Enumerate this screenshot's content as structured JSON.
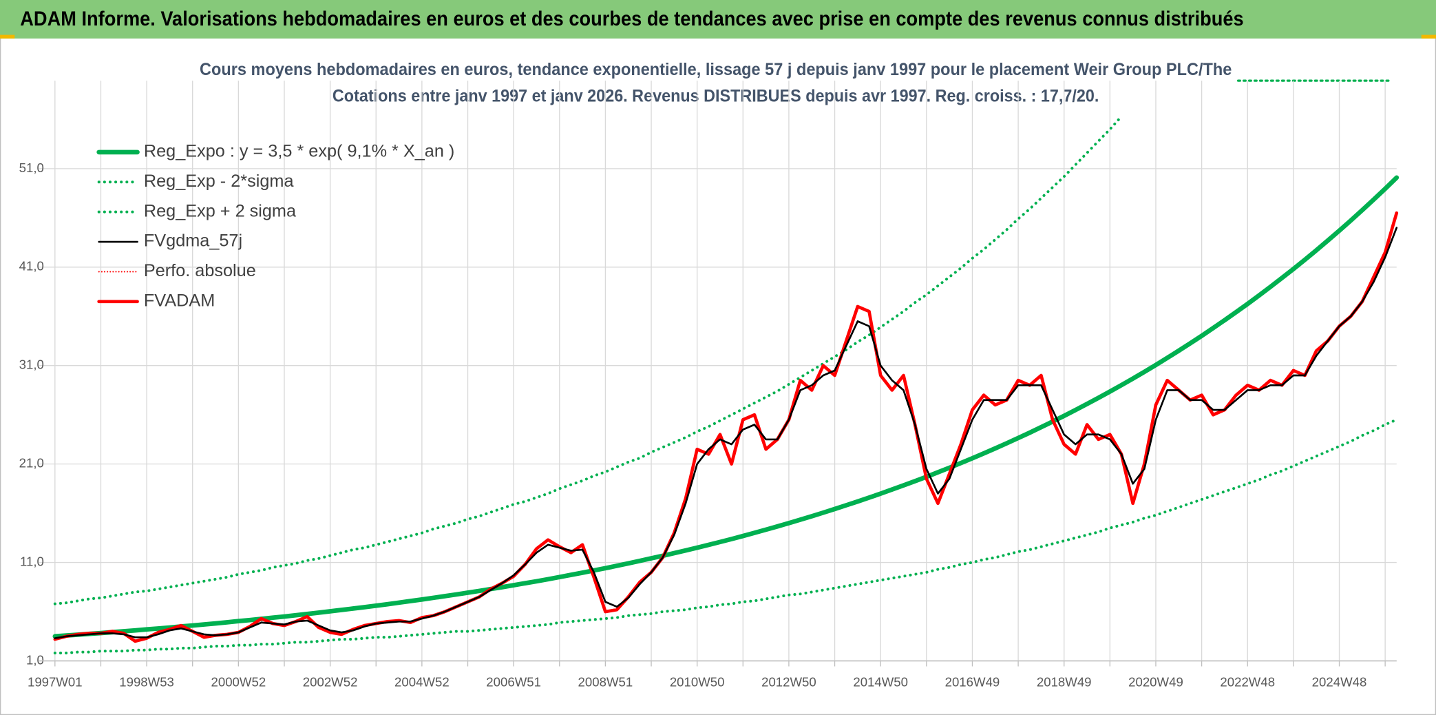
{
  "chart_data": {
    "type": "line",
    "page_title": "ADAM Informe. Valorisations hebdomadaires en euros et des courbes de tendances avec prise en compte des revenus connus distribués",
    "title": [
      "Cours moyens hebdomadaires en euros, tendance exponentielle, lissage 57 j depuis janv 1997 pour le placement Weir Group PLC/The",
      "Cotations entre janv 1997 et janv 2026. Revenus DISTRIBUES depuis avr 1997. Reg. croiss. : 17,7/20."
    ],
    "legend": "upper left",
    "grid": true,
    "ylim": [
      1,
      61
    ],
    "yticks": [
      {
        "value": 1,
        "label": "1,0"
      },
      {
        "value": 11,
        "label": "11,0"
      },
      {
        "value": 21,
        "label": "21,0"
      },
      {
        "value": 31,
        "label": "31,0"
      },
      {
        "value": 41,
        "label": "41,0"
      },
      {
        "value": 51,
        "label": "51,0"
      }
    ],
    "categories": [
      "1997W01",
      null,
      null,
      null,
      null,
      null,
      null,
      null,
      "1998W53",
      null,
      null,
      null,
      null,
      null,
      null,
      null,
      "2000W52",
      null,
      null,
      null,
      null,
      null,
      null,
      null,
      "2002W52",
      null,
      null,
      null,
      null,
      null,
      null,
      null,
      "2004W52",
      null,
      null,
      null,
      null,
      null,
      null,
      null,
      "2006W51",
      null,
      null,
      null,
      null,
      null,
      null,
      null,
      "2008W51",
      null,
      null,
      null,
      null,
      null,
      null,
      null,
      "2010W50",
      null,
      null,
      null,
      null,
      null,
      null,
      null,
      "2012W50",
      null,
      null,
      null,
      null,
      null,
      null,
      null,
      "2014W50",
      null,
      null,
      null,
      null,
      null,
      null,
      null,
      "2016W49",
      null,
      null,
      null,
      null,
      null,
      null,
      null,
      "2018W49",
      null,
      null,
      null,
      null,
      null,
      null,
      null,
      "2020W49",
      null,
      null,
      null,
      null,
      null,
      null,
      null,
      "2022W48",
      null,
      null,
      null,
      null,
      null,
      null,
      null,
      "2024W48",
      null,
      null,
      null,
      null,
      null
    ],
    "series": [
      {
        "name": "Reg_Expo : y = 3,5 * exp( 9,1% *  X_an )",
        "color": "#00b050",
        "style": "solid",
        "width": 5,
        "values": [
          3.5,
          3.58,
          3.66,
          3.75,
          3.83,
          3.92,
          4.01,
          4.1,
          4.2,
          4.29,
          4.39,
          4.5,
          4.6,
          4.7,
          4.81,
          4.92,
          5.04,
          5.15,
          5.27,
          5.39,
          5.51,
          5.64,
          5.77,
          5.9,
          6.04,
          6.18,
          6.32,
          6.46,
          6.61,
          6.76,
          6.92,
          7.08,
          7.24,
          7.41,
          7.58,
          7.75,
          7.93,
          8.11,
          8.3,
          8.49,
          8.69,
          8.89,
          9.09,
          9.3,
          9.52,
          9.74,
          9.96,
          10.19,
          10.42,
          10.66,
          10.91,
          11.16,
          11.42,
          11.68,
          11.95,
          12.22,
          12.5,
          12.79,
          13.08,
          13.38,
          13.69,
          14.01,
          14.33,
          14.66,
          15.0,
          15.35,
          15.7,
          16.06,
          16.43,
          16.81,
          17.19,
          17.59,
          17.99,
          18.41,
          18.83,
          19.26,
          19.7,
          20.16,
          20.62,
          21.1,
          21.58,
          22.08,
          22.59,
          23.11,
          23.64,
          24.18,
          24.74,
          25.31,
          25.89,
          26.49,
          27.1,
          27.72,
          28.36,
          29.01,
          29.68,
          30.36,
          31.06,
          31.78,
          32.51,
          33.26,
          34.02,
          34.81,
          35.61,
          36.43,
          37.26,
          38.12,
          39.0,
          39.9,
          40.81,
          41.75,
          42.71,
          43.7,
          44.7,
          45.73,
          46.79,
          47.86,
          48.96,
          50.09
        ]
      },
      {
        "name": "Reg_Exp - 2*sigma",
        "color": "#00b050",
        "style": "dotted",
        "width": 3,
        "values": [
          1.8,
          1.8,
          1.9,
          1.9,
          2.0,
          2.0,
          2.0,
          2.1,
          2.1,
          2.2,
          2.2,
          2.3,
          2.3,
          2.4,
          2.5,
          2.5,
          2.6,
          2.6,
          2.7,
          2.7,
          2.8,
          2.9,
          2.9,
          3.0,
          3.1,
          3.2,
          3.2,
          3.3,
          3.4,
          3.4,
          3.5,
          3.6,
          3.7,
          3.8,
          3.9,
          4.0,
          4.0,
          4.1,
          4.2,
          4.3,
          4.4,
          4.5,
          4.6,
          4.7,
          4.9,
          5.0,
          5.1,
          5.2,
          5.3,
          5.4,
          5.6,
          5.7,
          5.8,
          6.0,
          6.1,
          6.2,
          6.4,
          6.5,
          6.7,
          6.8,
          7.0,
          7.1,
          7.3,
          7.5,
          7.7,
          7.8,
          8.0,
          8.2,
          8.4,
          8.6,
          8.8,
          9.0,
          9.2,
          9.4,
          9.6,
          9.8,
          10.0,
          10.3,
          10.5,
          10.8,
          11.0,
          11.3,
          11.5,
          11.8,
          12.1,
          12.3,
          12.6,
          12.9,
          13.2,
          13.5,
          13.8,
          14.1,
          14.5,
          14.8,
          15.1,
          15.5,
          15.8,
          16.2,
          16.6,
          17.0,
          17.4,
          17.8,
          18.2,
          18.6,
          19.0,
          19.4,
          19.9,
          20.3,
          20.8,
          21.3,
          21.8,
          22.3,
          22.8,
          23.3,
          23.9,
          24.4,
          25.0,
          25.5
        ]
      },
      {
        "name": "Reg_Exp + 2 sigma",
        "color": "#00b050",
        "style": "dotted",
        "width": 3,
        "values": [
          6.8,
          6.9,
          7.1,
          7.3,
          7.4,
          7.6,
          7.8,
          8.0,
          8.1,
          8.3,
          8.5,
          8.7,
          8.9,
          9.1,
          9.3,
          9.5,
          9.8,
          10.0,
          10.2,
          10.5,
          10.7,
          10.9,
          11.2,
          11.4,
          11.7,
          12.0,
          12.3,
          12.5,
          12.8,
          13.1,
          13.4,
          13.7,
          14.0,
          14.4,
          14.7,
          15.0,
          15.4,
          15.7,
          16.1,
          16.5,
          16.9,
          17.2,
          17.6,
          18.0,
          18.5,
          18.9,
          19.3,
          19.8,
          20.2,
          20.7,
          21.2,
          21.6,
          22.2,
          22.7,
          23.2,
          23.7,
          24.3,
          24.8,
          25.4,
          26.0,
          26.6,
          27.2,
          27.8,
          28.4,
          29.1,
          29.8,
          30.5,
          31.2,
          31.9,
          32.6,
          33.4,
          34.1,
          34.9,
          35.7,
          36.5,
          37.4,
          38.2,
          39.1,
          40.0,
          40.9,
          41.9,
          42.8,
          43.8,
          44.8,
          45.9,
          46.9,
          48.0,
          49.1,
          50.2,
          51.4,
          52.6,
          53.8,
          55.0,
          56.3,
          null,
          null,
          null,
          null,
          null,
          null,
          null,
          null,
          null,
          null,
          null,
          null,
          null,
          null,
          null,
          null,
          null,
          null,
          null,
          null,
          null,
          null,
          null,
          null
        ]
      },
      {
        "name": "FVgdma_57j",
        "color": "#000000",
        "style": "solid",
        "width": 2,
        "values": [
          3.3,
          3.5,
          3.6,
          3.7,
          3.8,
          3.8,
          3.7,
          3.4,
          3.4,
          3.7,
          4.1,
          4.3,
          4.0,
          3.7,
          3.6,
          3.7,
          3.9,
          4.4,
          4.9,
          4.8,
          4.7,
          5.0,
          5.1,
          4.6,
          4.1,
          3.9,
          4.1,
          4.5,
          4.8,
          4.9,
          5.0,
          5.0,
          5.3,
          5.6,
          6.0,
          6.5,
          7.0,
          7.5,
          8.2,
          8.9,
          9.7,
          10.8,
          12.0,
          12.8,
          12.5,
          12.2,
          12.3,
          10.0,
          7.0,
          6.5,
          7.4,
          8.8,
          10.0,
          11.5,
          13.8,
          17.0,
          21.0,
          22.5,
          23.5,
          23.0,
          24.5,
          25.0,
          23.5,
          23.5,
          25.5,
          28.5,
          29.0,
          30.0,
          30.5,
          33.0,
          35.5,
          35.0,
          31.0,
          29.5,
          28.5,
          25.0,
          20.5,
          18.0,
          19.5,
          22.5,
          25.5,
          27.5,
          27.5,
          27.5,
          29.0,
          29.0,
          29.0,
          26.5,
          24.0,
          23.0,
          24.0,
          24.0,
          23.5,
          22.0,
          19.0,
          20.5,
          25.5,
          28.5,
          28.5,
          27.5,
          27.5,
          26.5,
          26.5,
          27.5,
          28.5,
          28.5,
          29.0,
          29.0,
          30.0,
          30.0,
          32.0,
          33.5,
          35.0,
          36.0,
          37.5,
          39.5,
          42.0,
          45.0
        ]
      },
      {
        "name": "Perfo. absolue",
        "color": "#ff0000",
        "style": "dotted",
        "width": 1.5,
        "values": [
          3.2,
          3.5,
          3.7,
          3.8,
          3.8,
          4.0,
          3.8,
          3.0,
          3.3,
          3.9,
          4.2,
          4.6,
          4.0,
          3.4,
          3.6,
          3.7,
          3.9,
          4.5,
          5.3,
          4.8,
          4.6,
          5.0,
          5.5,
          4.4,
          3.9,
          3.7,
          4.2,
          4.6,
          4.8,
          5.0,
          5.1,
          4.9,
          5.4,
          5.6,
          6.0,
          6.5,
          7.0,
          7.5,
          8.3,
          8.9,
          9.6,
          10.8,
          12.4,
          13.3,
          12.6,
          12.0,
          12.8,
          9.5,
          6.0,
          6.2,
          7.5,
          9.0,
          10.0,
          11.5,
          14.0,
          17.5,
          22.5,
          22.0,
          24.0,
          21.0,
          25.5,
          26.0,
          22.5,
          23.5,
          25.5,
          29.5,
          28.5,
          31.0,
          30.0,
          33.5,
          37.0,
          36.5,
          30.0,
          28.5,
          30.0,
          25.0,
          19.5,
          17.0,
          20.0,
          23.0,
          26.5,
          28.0,
          27.0,
          27.5,
          29.5,
          29.0,
          30.0,
          25.5,
          23.0,
          22.0,
          25.0,
          23.5,
          24.0,
          22.0,
          17.0,
          21.0,
          27.0,
          29.5,
          28.5,
          27.5,
          28.0,
          26.0,
          26.5,
          28.0,
          29.0,
          28.5,
          29.5,
          29.0,
          30.5,
          30.0,
          32.5,
          33.5,
          35.0,
          36.0,
          37.5,
          40.0,
          42.5,
          46.5
        ]
      },
      {
        "name": "FVADAM",
        "color": "#ff0000",
        "style": "solid",
        "width": 3.5,
        "values": [
          3.2,
          3.5,
          3.7,
          3.8,
          3.8,
          4.0,
          3.8,
          3.0,
          3.3,
          3.9,
          4.2,
          4.6,
          4.0,
          3.4,
          3.6,
          3.7,
          3.9,
          4.5,
          5.3,
          4.8,
          4.6,
          5.0,
          5.5,
          4.4,
          3.9,
          3.7,
          4.2,
          4.6,
          4.8,
          5.0,
          5.1,
          4.9,
          5.4,
          5.6,
          6.0,
          6.5,
          7.0,
          7.5,
          8.3,
          8.9,
          9.6,
          10.8,
          12.4,
          13.3,
          12.6,
          12.0,
          12.8,
          9.5,
          6.0,
          6.2,
          7.5,
          9.0,
          10.0,
          11.5,
          14.0,
          17.5,
          22.5,
          22.0,
          24.0,
          21.0,
          25.5,
          26.0,
          22.5,
          23.5,
          25.5,
          29.5,
          28.5,
          31.0,
          30.0,
          33.5,
          37.0,
          36.5,
          30.0,
          28.5,
          30.0,
          25.0,
          19.5,
          17.0,
          20.0,
          23.0,
          26.5,
          28.0,
          27.0,
          27.5,
          29.5,
          29.0,
          30.0,
          25.5,
          23.0,
          22.0,
          25.0,
          23.5,
          24.0,
          22.0,
          17.0,
          21.0,
          27.0,
          29.5,
          28.5,
          27.5,
          28.0,
          26.0,
          26.5,
          28.0,
          29.0,
          28.5,
          29.5,
          29.0,
          30.5,
          30.0,
          32.5,
          33.5,
          35.0,
          36.0,
          37.5,
          40.0,
          42.5,
          46.5
        ]
      }
    ]
  }
}
